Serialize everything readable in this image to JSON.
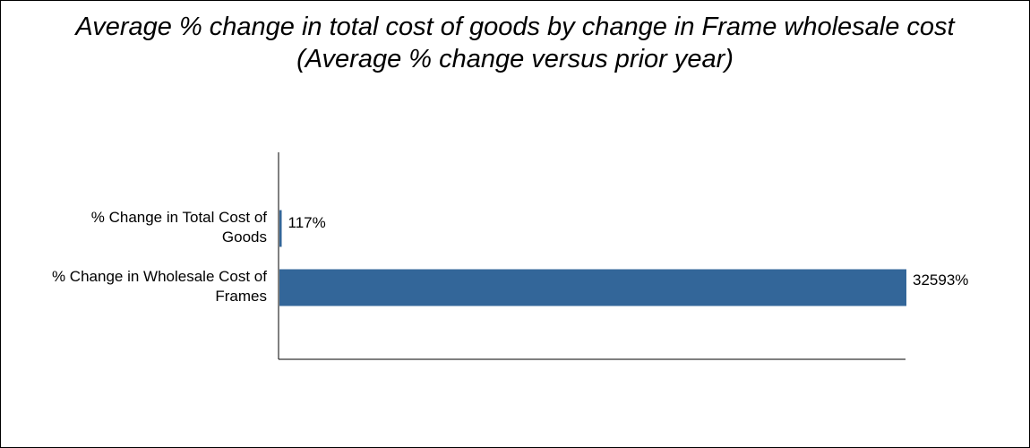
{
  "chart_data": {
    "type": "bar",
    "orientation": "horizontal",
    "title_lines": [
      "Average % change in total cost of goods by change in Frame wholesale cost",
      "(Average % change versus prior year)"
    ],
    "categories": [
      [
        "% Change in Total Cost of",
        "Goods"
      ],
      [
        "% Change in Wholesale Cost of",
        "Frames"
      ]
    ],
    "series": [
      {
        "values": [
          117,
          32593
        ],
        "labels": [
          "117%",
          "32593%"
        ],
        "color": "#336699"
      }
    ],
    "xlim": [
      0,
      32593
    ],
    "grid": false,
    "legend": "none"
  }
}
